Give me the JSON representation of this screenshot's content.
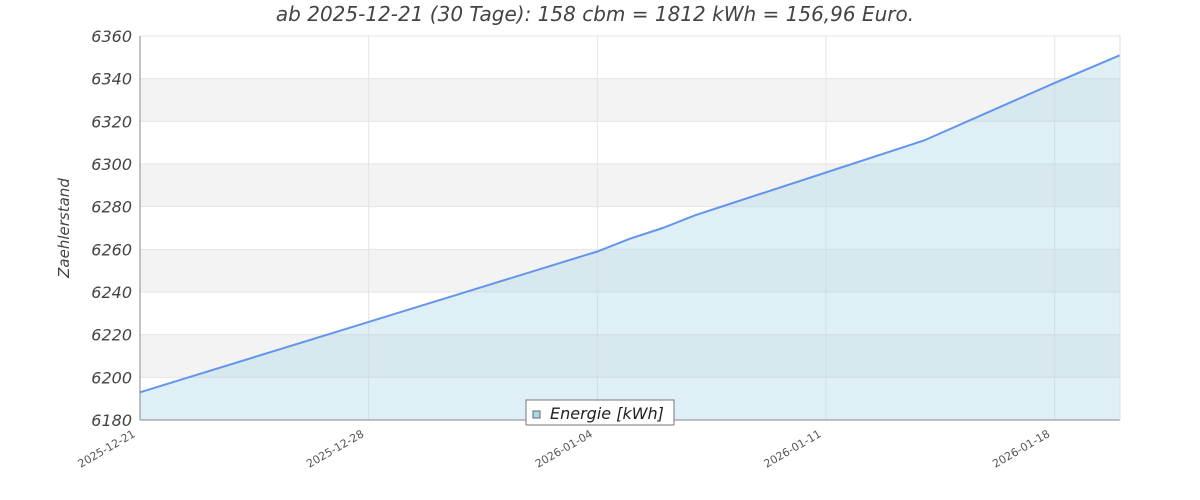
{
  "chart_data": {
    "type": "area",
    "title": "ab 2025-12-21 (30 Tage): 158 cbm = 1812 kWh = 156,96 Euro.",
    "xlabel": "",
    "ylabel": "Zaehlerstand",
    "xlim": [
      "2025-12-21",
      "2026-01-20"
    ],
    "ylim": [
      6180,
      6360
    ],
    "y_ticks": [
      6180,
      6200,
      6220,
      6240,
      6260,
      6280,
      6300,
      6320,
      6340,
      6360
    ],
    "x_ticks": [
      "2025-12-21",
      "2025-12-28",
      "2026-01-04",
      "2026-01-11",
      "2026-01-18"
    ],
    "grid": true,
    "legend_position": "bottom-center",
    "colors": {
      "line": "#6495ED",
      "fill": "#ADD8E6",
      "band": "#F3F3F3"
    },
    "series": [
      {
        "name": "Energie [kWh]",
        "x": [
          "2025-12-21",
          "2025-12-28",
          "2026-01-04",
          "2026-01-05",
          "2026-01-06",
          "2026-01-07",
          "2026-01-08",
          "2026-01-11",
          "2026-01-14",
          "2026-01-18",
          "2026-01-20"
        ],
        "values": [
          6193,
          6226,
          6259,
          6265,
          6270,
          6276,
          6281,
          6296,
          6311,
          6338,
          6351
        ]
      }
    ]
  }
}
